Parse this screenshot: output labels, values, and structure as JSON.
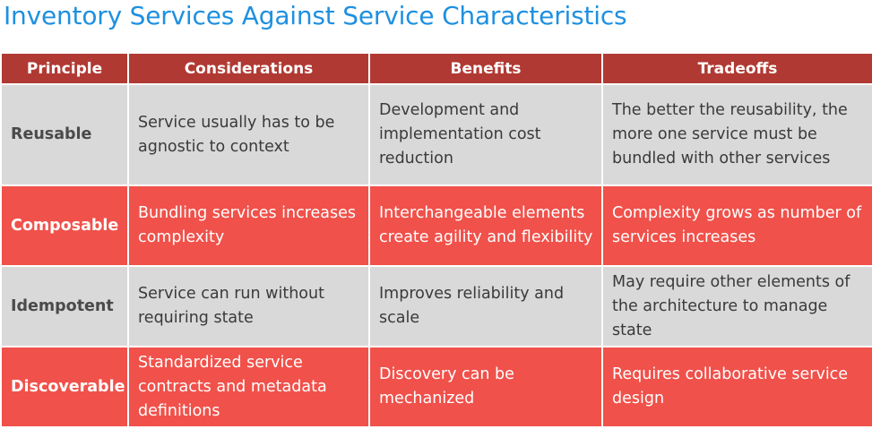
{
  "title": "Inventory Services Against Service Characteristics",
  "colors": {
    "title": "#1e90e0",
    "header_bg": "#b03a33",
    "row_gray": "#d9d9d9",
    "row_red": "#f0514a"
  },
  "table": {
    "headers": [
      "Principle",
      "Considerations",
      "Benefits",
      "Tradeoffs"
    ],
    "rows": [
      {
        "principle": "Reusable",
        "considerations": "Service usually has to be agnostic to context",
        "benefits": "Development and implementation cost reduction",
        "tradeoffs": "The better the reusability, the more one service must be bundled with other services"
      },
      {
        "principle": "Composable",
        "considerations": "Bundling services increases complexity",
        "benefits": "Interchangeable elements create agility and flexibility",
        "tradeoffs": "Complexity grows as number of services increases"
      },
      {
        "principle": "Idempotent",
        "considerations": "Service can run without requiring state",
        "benefits": "Improves reliability and scale",
        "tradeoffs": "May require other elements of the architecture to manage state"
      },
      {
        "principle": "Discoverable",
        "considerations": "Standardized service contracts and metadata definitions",
        "benefits": "Discovery can be mechanized",
        "tradeoffs": "Requires collaborative service design"
      }
    ]
  }
}
